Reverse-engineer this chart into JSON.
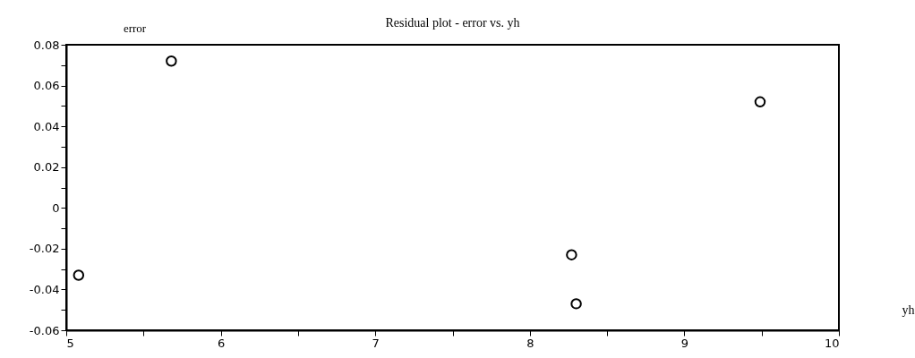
{
  "chart_data": {
    "type": "scatter",
    "title": "Residual plot - error vs. yh",
    "xlabel": "yh",
    "ylabel": "error",
    "x": [
      5.08,
      5.68,
      8.27,
      8.3,
      9.49
    ],
    "series": [
      {
        "color": "#000000",
        "values": [
          -0.033,
          0.072,
          -0.023,
          -0.047,
          0.052
        ]
      }
    ],
    "marker": "circle",
    "xlim": [
      5,
      10
    ],
    "ylim": [
      -0.06,
      0.08
    ],
    "xticks": [
      5,
      {
        "value": 5.5,
        "label": null
      },
      6,
      {
        "value": 6.5,
        "label": null
      },
      7,
      {
        "value": 7.5,
        "label": null
      },
      8,
      {
        "value": 8.5,
        "label": null
      },
      9,
      {
        "value": 9.5,
        "label": null
      },
      10
    ],
    "yticks": [
      -0.06,
      {
        "value": -0.05,
        "label": null
      },
      -0.04,
      {
        "value": -0.03,
        "label": null
      },
      -0.02,
      {
        "value": -0.01,
        "label": null
      },
      0,
      {
        "value": 0.01,
        "label": null
      },
      0.02,
      {
        "value": 0.03,
        "label": null
      },
      0.04,
      {
        "value": 0.05,
        "label": null
      },
      0.06,
      {
        "value": 0.07,
        "label": null
      },
      0.08
    ],
    "grid": false,
    "legend": false
  }
}
